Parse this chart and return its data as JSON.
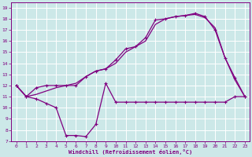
{
  "bg_color": "#cce8e8",
  "grid_color": "#ffffff",
  "line_color": "#800080",
  "xlabel": "Windchill (Refroidissement éolien,°C)",
  "xlim": [
    -0.5,
    23.5
  ],
  "ylim": [
    7,
    19.5
  ],
  "xticks": [
    0,
    1,
    2,
    3,
    4,
    5,
    6,
    7,
    8,
    9,
    10,
    11,
    12,
    13,
    14,
    15,
    16,
    17,
    18,
    19,
    20,
    21,
    22,
    23
  ],
  "yticks": [
    7,
    8,
    9,
    10,
    11,
    12,
    13,
    14,
    15,
    16,
    17,
    18,
    19
  ],
  "wc_x": [
    0,
    1,
    2,
    3,
    4,
    5,
    6,
    7,
    8,
    9,
    10,
    11,
    12,
    13,
    14,
    15,
    16,
    17,
    18,
    19,
    20,
    21,
    22,
    23
  ],
  "wc_y": [
    12,
    11,
    10.8,
    10.4,
    10.0,
    7.5,
    7.5,
    7.4,
    8.5,
    12.2,
    10.5,
    10.5,
    10.5,
    10.5,
    10.5,
    10.5,
    10.5,
    10.5,
    10.5,
    10.5,
    10.5,
    10.5,
    11.0,
    11.0
  ],
  "t1_x": [
    0,
    1,
    2,
    3,
    4,
    5,
    6,
    7,
    8,
    9,
    10,
    11,
    12,
    13,
    14,
    15,
    16,
    17,
    18,
    19,
    20,
    21,
    22,
    23
  ],
  "t1_y": [
    12,
    11,
    11.8,
    12.0,
    12.0,
    12.0,
    12.0,
    12.8,
    13.3,
    13.5,
    14.3,
    15.3,
    15.5,
    16.3,
    17.9,
    18.0,
    18.2,
    18.3,
    18.5,
    18.2,
    17.0,
    14.5,
    12.7,
    11
  ],
  "t2_x": [
    0,
    1,
    2,
    3,
    4,
    5,
    6,
    7,
    8,
    9,
    10,
    11,
    12,
    13,
    14,
    15,
    16,
    17,
    18,
    19,
    20,
    21,
    22,
    23
  ],
  "t2_y": [
    12,
    11,
    11.2,
    11.5,
    11.8,
    12.0,
    12.2,
    12.8,
    13.3,
    13.5,
    14.0,
    15.0,
    15.5,
    16.0,
    17.5,
    18.0,
    18.2,
    18.3,
    18.4,
    18.1,
    17.2,
    14.5,
    12.5,
    11
  ]
}
